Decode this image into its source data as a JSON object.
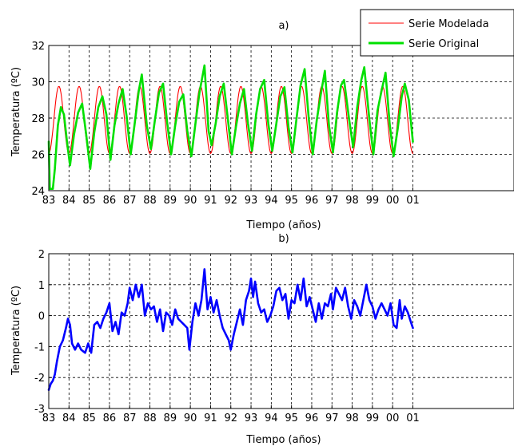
{
  "chart_data": [
    {
      "type": "line",
      "title": "a)",
      "xlabel": "Tiempo (años)",
      "ylabel": "Temperatura (ºC)",
      "ylim": [
        24,
        32
      ],
      "yticks": [
        24,
        26,
        28,
        30,
        32
      ],
      "xticks": [
        "83",
        "84",
        "85",
        "86",
        "87",
        "88",
        "89",
        "90",
        "91",
        "92",
        "93",
        "94",
        "95",
        "96",
        "97",
        "98",
        "99",
        "00",
        "01"
      ],
      "grid": true,
      "legend": {
        "placement": "top-right"
      },
      "series": [
        {
          "name": "Serie Modelada",
          "color": "#ff0000",
          "model": {
            "start": 1983.0,
            "end": 2001.0,
            "mean": 27.9,
            "amplitude": 1.85,
            "peak_phase": 0.5,
            "step": 0.04
          }
        },
        {
          "name": "Serie Original",
          "color": "#00e000",
          "points": [
            [
              1983.0,
              26.7
            ],
            [
              1983.05,
              24.1
            ],
            [
              1983.2,
              24.1
            ],
            [
              1983.3,
              25.2
            ],
            [
              1983.45,
              27.6
            ],
            [
              1983.6,
              28.6
            ],
            [
              1983.75,
              28.2
            ],
            [
              1983.9,
              26.7
            ],
            [
              1984.05,
              25.4
            ],
            [
              1984.25,
              27.1
            ],
            [
              1984.45,
              28.3
            ],
            [
              1984.65,
              28.8
            ],
            [
              1984.85,
              27.1
            ],
            [
              1985.05,
              25.2
            ],
            [
              1985.25,
              27.2
            ],
            [
              1985.45,
              28.6
            ],
            [
              1985.65,
              29.2
            ],
            [
              1985.85,
              28.2
            ],
            [
              1986.05,
              25.7
            ],
            [
              1986.25,
              27.6
            ],
            [
              1986.45,
              28.8
            ],
            [
              1986.65,
              29.6
            ],
            [
              1986.85,
              28.1
            ],
            [
              1987.05,
              26.0
            ],
            [
              1987.25,
              27.7
            ],
            [
              1987.45,
              29.5
            ],
            [
              1987.6,
              30.4
            ],
            [
              1987.85,
              27.6
            ],
            [
              1988.05,
              26.3
            ],
            [
              1988.25,
              27.9
            ],
            [
              1988.45,
              29.4
            ],
            [
              1988.65,
              29.9
            ],
            [
              1988.85,
              27.8
            ],
            [
              1989.05,
              26.0
            ],
            [
              1989.25,
              27.6
            ],
            [
              1989.45,
              28.9
            ],
            [
              1989.65,
              29.3
            ],
            [
              1989.85,
              27.3
            ],
            [
              1990.05,
              25.9
            ],
            [
              1990.25,
              27.7
            ],
            [
              1990.45,
              29.4
            ],
            [
              1990.7,
              30.9
            ],
            [
              1990.9,
              27.3
            ],
            [
              1991.05,
              26.5
            ],
            [
              1991.25,
              27.7
            ],
            [
              1991.45,
              29.2
            ],
            [
              1991.65,
              29.9
            ],
            [
              1991.85,
              28.0
            ],
            [
              1992.05,
              26.0
            ],
            [
              1992.25,
              27.5
            ],
            [
              1992.45,
              28.8
            ],
            [
              1992.65,
              29.6
            ],
            [
              1992.85,
              27.7
            ],
            [
              1993.05,
              26.2
            ],
            [
              1993.25,
              28.2
            ],
            [
              1993.45,
              29.6
            ],
            [
              1993.65,
              30.1
            ],
            [
              1993.85,
              27.7
            ],
            [
              1994.05,
              26.2
            ],
            [
              1994.25,
              27.7
            ],
            [
              1994.45,
              29.2
            ],
            [
              1994.65,
              29.7
            ],
            [
              1994.85,
              27.5
            ],
            [
              1995.05,
              26.1
            ],
            [
              1995.25,
              28.0
            ],
            [
              1995.45,
              29.8
            ],
            [
              1995.65,
              30.7
            ],
            [
              1995.85,
              28.0
            ],
            [
              1996.05,
              26.0
            ],
            [
              1996.25,
              27.9
            ],
            [
              1996.45,
              29.3
            ],
            [
              1996.65,
              30.6
            ],
            [
              1996.85,
              27.6
            ],
            [
              1997.05,
              26.1
            ],
            [
              1997.25,
              28.3
            ],
            [
              1997.45,
              29.8
            ],
            [
              1997.6,
              30.1
            ],
            [
              1997.85,
              27.9
            ],
            [
              1998.05,
              26.4
            ],
            [
              1998.25,
              28.6
            ],
            [
              1998.45,
              30.1
            ],
            [
              1998.6,
              30.8
            ],
            [
              1998.85,
              27.9
            ],
            [
              1999.05,
              26.0
            ],
            [
              1999.25,
              28.4
            ],
            [
              1999.45,
              29.5
            ],
            [
              1999.65,
              30.5
            ],
            [
              1999.85,
              27.7
            ],
            [
              2000.05,
              25.9
            ],
            [
              2000.25,
              27.4
            ],
            [
              2000.45,
              29.2
            ],
            [
              2000.6,
              29.9
            ],
            [
              2000.8,
              29.0
            ],
            [
              2001.0,
              26.7
            ]
          ]
        }
      ]
    },
    {
      "type": "line",
      "title": "b)",
      "xlabel": "Tiempo (años)",
      "ylabel": "Temperatura (ºC)",
      "ylim": [
        -3,
        2
      ],
      "yticks": [
        -3,
        -2,
        -1,
        0,
        1,
        2
      ],
      "xticks": [
        "83",
        "84",
        "85",
        "86",
        "87",
        "88",
        "89",
        "90",
        "91",
        "92",
        "93",
        "94",
        "95",
        "96",
        "97",
        "98",
        "99",
        "00",
        "01"
      ],
      "grid": true,
      "series": [
        {
          "color": "#0000ff",
          "points": [
            [
              1983.0,
              -2.4
            ],
            [
              1983.1,
              -2.2
            ],
            [
              1983.2,
              -2.1
            ],
            [
              1983.3,
              -1.9
            ],
            [
              1983.4,
              -1.5
            ],
            [
              1983.55,
              -1.0
            ],
            [
              1983.7,
              -0.8
            ],
            [
              1983.85,
              -0.4
            ],
            [
              1983.95,
              -0.1
            ],
            [
              1984.05,
              -0.3
            ],
            [
              1984.15,
              -0.9
            ],
            [
              1984.3,
              -1.1
            ],
            [
              1984.45,
              -0.9
            ],
            [
              1984.6,
              -1.1
            ],
            [
              1984.8,
              -1.2
            ],
            [
              1984.95,
              -0.9
            ],
            [
              1985.1,
              -1.2
            ],
            [
              1985.25,
              -0.3
            ],
            [
              1985.4,
              -0.2
            ],
            [
              1985.55,
              -0.4
            ],
            [
              1985.7,
              -0.1
            ],
            [
              1985.85,
              0.1
            ],
            [
              1986.0,
              0.4
            ],
            [
              1986.15,
              -0.5
            ],
            [
              1986.3,
              -0.2
            ],
            [
              1986.45,
              -0.6
            ],
            [
              1986.6,
              0.1
            ],
            [
              1986.75,
              0.0
            ],
            [
              1986.9,
              0.4
            ],
            [
              1987.0,
              0.9
            ],
            [
              1987.15,
              0.5
            ],
            [
              1987.3,
              1.0
            ],
            [
              1987.45,
              0.6
            ],
            [
              1987.6,
              1.0
            ],
            [
              1987.75,
              0.0
            ],
            [
              1987.9,
              0.4
            ],
            [
              1988.05,
              0.2
            ],
            [
              1988.2,
              0.3
            ],
            [
              1988.35,
              -0.2
            ],
            [
              1988.5,
              0.2
            ],
            [
              1988.65,
              -0.5
            ],
            [
              1988.8,
              0.1
            ],
            [
              1988.95,
              0.0
            ],
            [
              1989.1,
              -0.3
            ],
            [
              1989.25,
              0.2
            ],
            [
              1989.4,
              -0.1
            ],
            [
              1989.55,
              -0.2
            ],
            [
              1989.7,
              -0.3
            ],
            [
              1989.85,
              -0.4
            ],
            [
              1989.95,
              -1.1
            ],
            [
              1990.1,
              -0.2
            ],
            [
              1990.25,
              0.4
            ],
            [
              1990.4,
              0.0
            ],
            [
              1990.55,
              0.5
            ],
            [
              1990.7,
              1.5
            ],
            [
              1990.85,
              0.2
            ],
            [
              1991.0,
              0.6
            ],
            [
              1991.15,
              0.1
            ],
            [
              1991.3,
              0.5
            ],
            [
              1991.45,
              0.0
            ],
            [
              1991.6,
              -0.4
            ],
            [
              1991.75,
              -0.6
            ],
            [
              1991.9,
              -0.8
            ],
            [
              1992.0,
              -1.1
            ],
            [
              1992.15,
              -0.6
            ],
            [
              1992.3,
              -0.2
            ],
            [
              1992.45,
              0.2
            ],
            [
              1992.6,
              -0.3
            ],
            [
              1992.75,
              0.5
            ],
            [
              1992.9,
              0.8
            ],
            [
              1993.0,
              1.2
            ],
            [
              1993.1,
              0.6
            ],
            [
              1993.2,
              1.1
            ],
            [
              1993.35,
              0.4
            ],
            [
              1993.5,
              0.1
            ],
            [
              1993.65,
              0.2
            ],
            [
              1993.8,
              -0.2
            ],
            [
              1993.95,
              0.0
            ],
            [
              1994.1,
              0.3
            ],
            [
              1994.25,
              0.8
            ],
            [
              1994.4,
              0.9
            ],
            [
              1994.55,
              0.5
            ],
            [
              1994.7,
              0.7
            ],
            [
              1994.85,
              -0.1
            ],
            [
              1995.0,
              0.5
            ],
            [
              1995.15,
              0.4
            ],
            [
              1995.3,
              1.0
            ],
            [
              1995.45,
              0.5
            ],
            [
              1995.6,
              1.2
            ],
            [
              1995.75,
              0.3
            ],
            [
              1995.9,
              0.6
            ],
            [
              1996.05,
              0.2
            ],
            [
              1996.2,
              -0.2
            ],
            [
              1996.35,
              0.4
            ],
            [
              1996.5,
              -0.1
            ],
            [
              1996.65,
              0.4
            ],
            [
              1996.8,
              0.3
            ],
            [
              1996.95,
              0.7
            ],
            [
              1997.05,
              0.2
            ],
            [
              1997.2,
              0.9
            ],
            [
              1997.35,
              0.7
            ],
            [
              1997.5,
              0.5
            ],
            [
              1997.65,
              0.9
            ],
            [
              1997.8,
              0.3
            ],
            [
              1997.95,
              -0.1
            ],
            [
              1998.1,
              0.5
            ],
            [
              1998.25,
              0.3
            ],
            [
              1998.4,
              0.0
            ],
            [
              1998.55,
              0.5
            ],
            [
              1998.7,
              1.0
            ],
            [
              1998.85,
              0.5
            ],
            [
              1999.0,
              0.3
            ],
            [
              1999.15,
              -0.1
            ],
            [
              1999.3,
              0.2
            ],
            [
              1999.45,
              0.4
            ],
            [
              1999.6,
              0.2
            ],
            [
              1999.75,
              0.0
            ],
            [
              1999.9,
              0.4
            ],
            [
              2000.05,
              -0.3
            ],
            [
              2000.2,
              -0.4
            ],
            [
              2000.35,
              0.5
            ],
            [
              2000.45,
              -0.1
            ],
            [
              2000.6,
              0.3
            ],
            [
              2000.75,
              0.1
            ],
            [
              2000.9,
              -0.2
            ],
            [
              2001.0,
              -0.4
            ]
          ]
        }
      ]
    }
  ]
}
